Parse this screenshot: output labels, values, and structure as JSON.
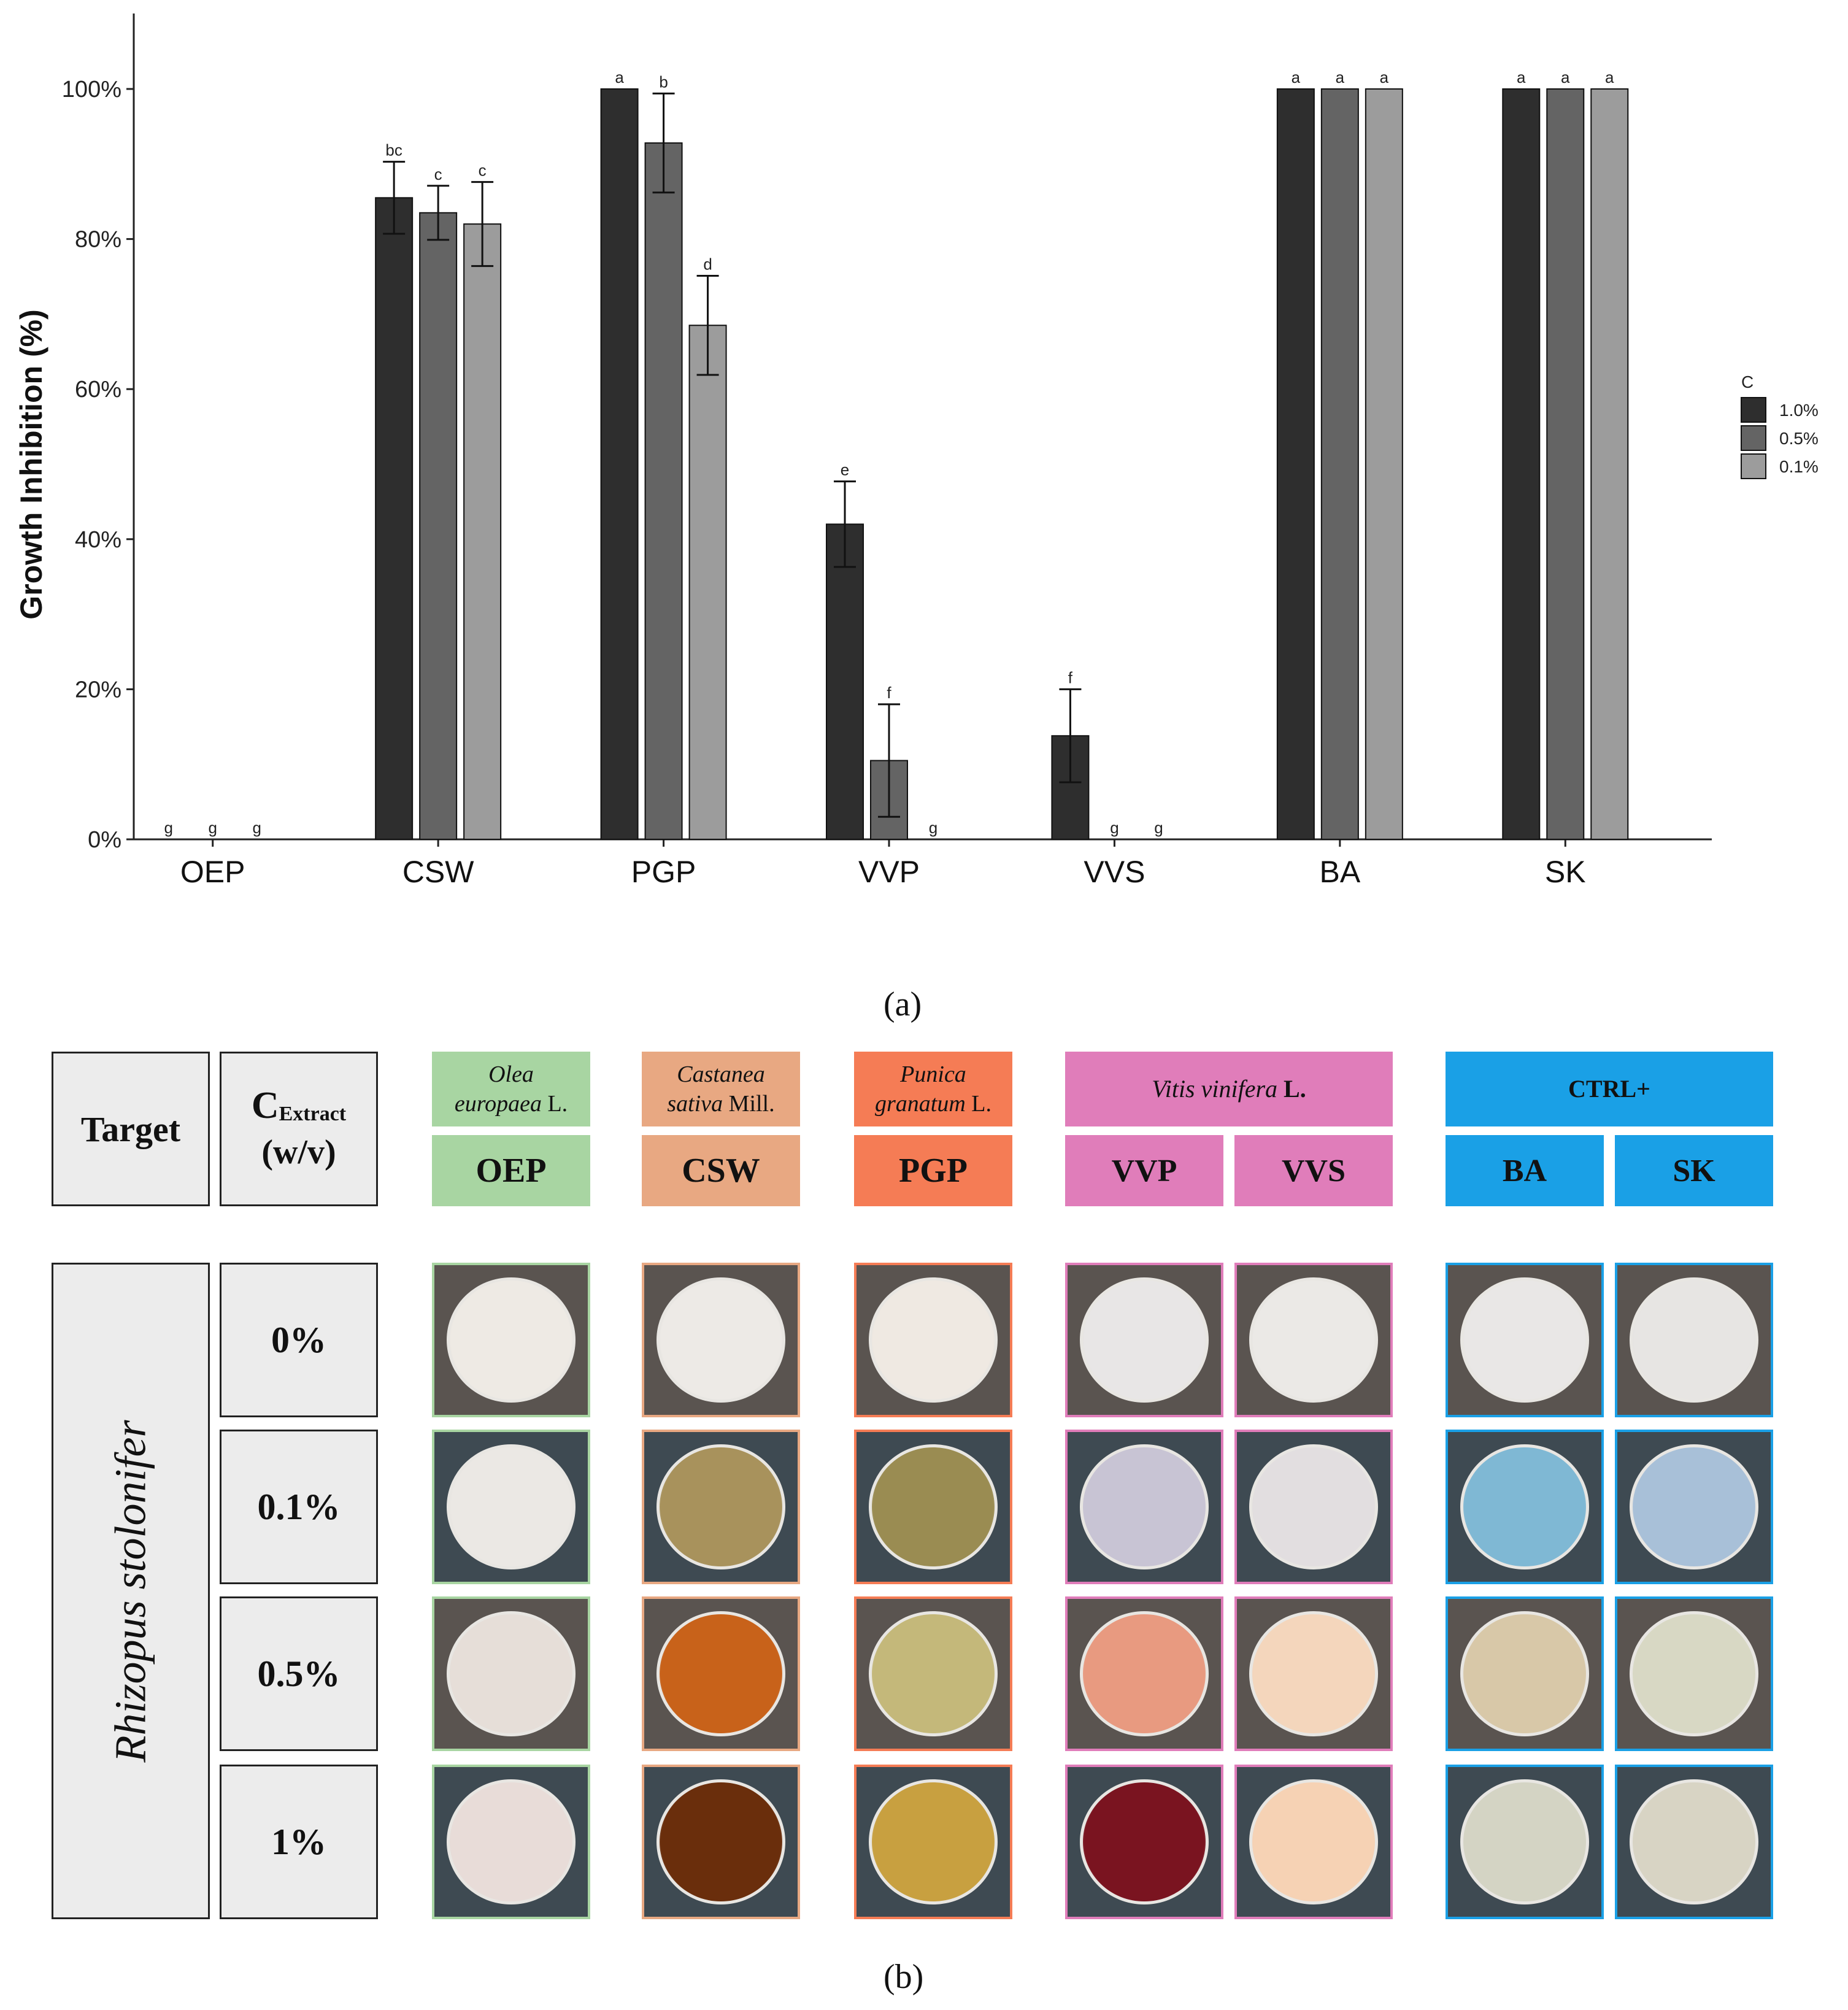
{
  "chart_data": {
    "type": "bar",
    "ylabel": "Growth Inhibition (%)",
    "ylim": [
      0,
      110
    ],
    "yticks": [
      0,
      20,
      40,
      60,
      80,
      100
    ],
    "ytick_labels": [
      "0%",
      "20%",
      "40%",
      "60%",
      "80%",
      "100%"
    ],
    "categories": [
      "OEP",
      "CSW",
      "PGP",
      "VVP",
      "VVS",
      "BA",
      "SK"
    ],
    "legend_title": "C",
    "legend_position": "right",
    "series": [
      {
        "name": "1.0%",
        "color": "#2e2e2e",
        "values": [
          0,
          85.5,
          100,
          42,
          13.8,
          100,
          100
        ],
        "errors": [
          0,
          4.8,
          0,
          5.7,
          6.2,
          0,
          0
        ],
        "letters": [
          "g",
          "bc",
          "a",
          "e",
          "f",
          "a",
          "a"
        ]
      },
      {
        "name": "0.5%",
        "color": "#646464",
        "values": [
          0,
          83.5,
          92.8,
          10.5,
          0,
          100,
          100
        ],
        "errors": [
          0,
          3.6,
          6.6,
          7.5,
          0,
          0,
          0
        ],
        "letters": [
          "g",
          "c",
          "b",
          "f",
          "g",
          "a",
          "a"
        ]
      },
      {
        "name": "0.1%",
        "color": "#9c9c9c",
        "values": [
          0,
          82,
          68.5,
          0,
          0,
          100,
          100
        ],
        "errors": [
          0,
          5.6,
          6.6,
          0,
          0,
          0,
          0
        ],
        "letters": [
          "g",
          "c",
          "d",
          "g",
          "g",
          "a",
          "a"
        ]
      }
    ]
  },
  "captions": {
    "a": "(a)",
    "b": "(b)"
  },
  "panel_b": {
    "target_header": "Target",
    "conc_header_main": "C",
    "conc_header_sub": "Extract",
    "conc_header_unit": "(w/v)",
    "target_name": "Rhizopus stolonifer",
    "concentrations": [
      "0%",
      "0.1%",
      "0.5%",
      "1%"
    ],
    "species": {
      "oep_genus": "Olea",
      "oep_epithet": "europaea",
      "oep_author": "L.",
      "csw_genus": "Castanea",
      "csw_epithet": "sativa",
      "csw_author": "Mill.",
      "pgp_genus": "Punica",
      "pgp_epithet": "granatum",
      "pgp_author": "L.",
      "vv_name": "Vitis vinifera",
      "vv_author": "L.",
      "ctrl": "CTRL+"
    },
    "codes": [
      "OEP",
      "CSW",
      "PGP",
      "VVP",
      "VVS",
      "BA",
      "SK"
    ],
    "colors": {
      "oep": "#a8d5a2",
      "csw": "#e8a882",
      "pgp": "#f57c55",
      "vv": "#e07dba",
      "ctrl": "#1aa0e6"
    },
    "plates": [
      [
        "#eeeae4",
        "#edeae6",
        "#efe9e2",
        "#e8e6e6",
        "#ebe9e6",
        "#e9e7e6",
        "#e7e5e3"
      ],
      [
        "#ebe8e4",
        "#a8925c",
        "#9a8c52",
        "#c8c4d4",
        "#e2dee0",
        "#7fb8d4",
        "#a8c0d8"
      ],
      [
        "#e6ded8",
        "#c8621a",
        "#c4b87a",
        "#e89a80",
        "#f4d6bc",
        "#d8c8a8",
        "#d8d8c4"
      ],
      [
        "#e8dcd8",
        "#6a2e0c",
        "#c8a040",
        "#7a1420",
        "#f6d2b4",
        "#d4d4c4",
        "#d8d4c4"
      ]
    ]
  }
}
